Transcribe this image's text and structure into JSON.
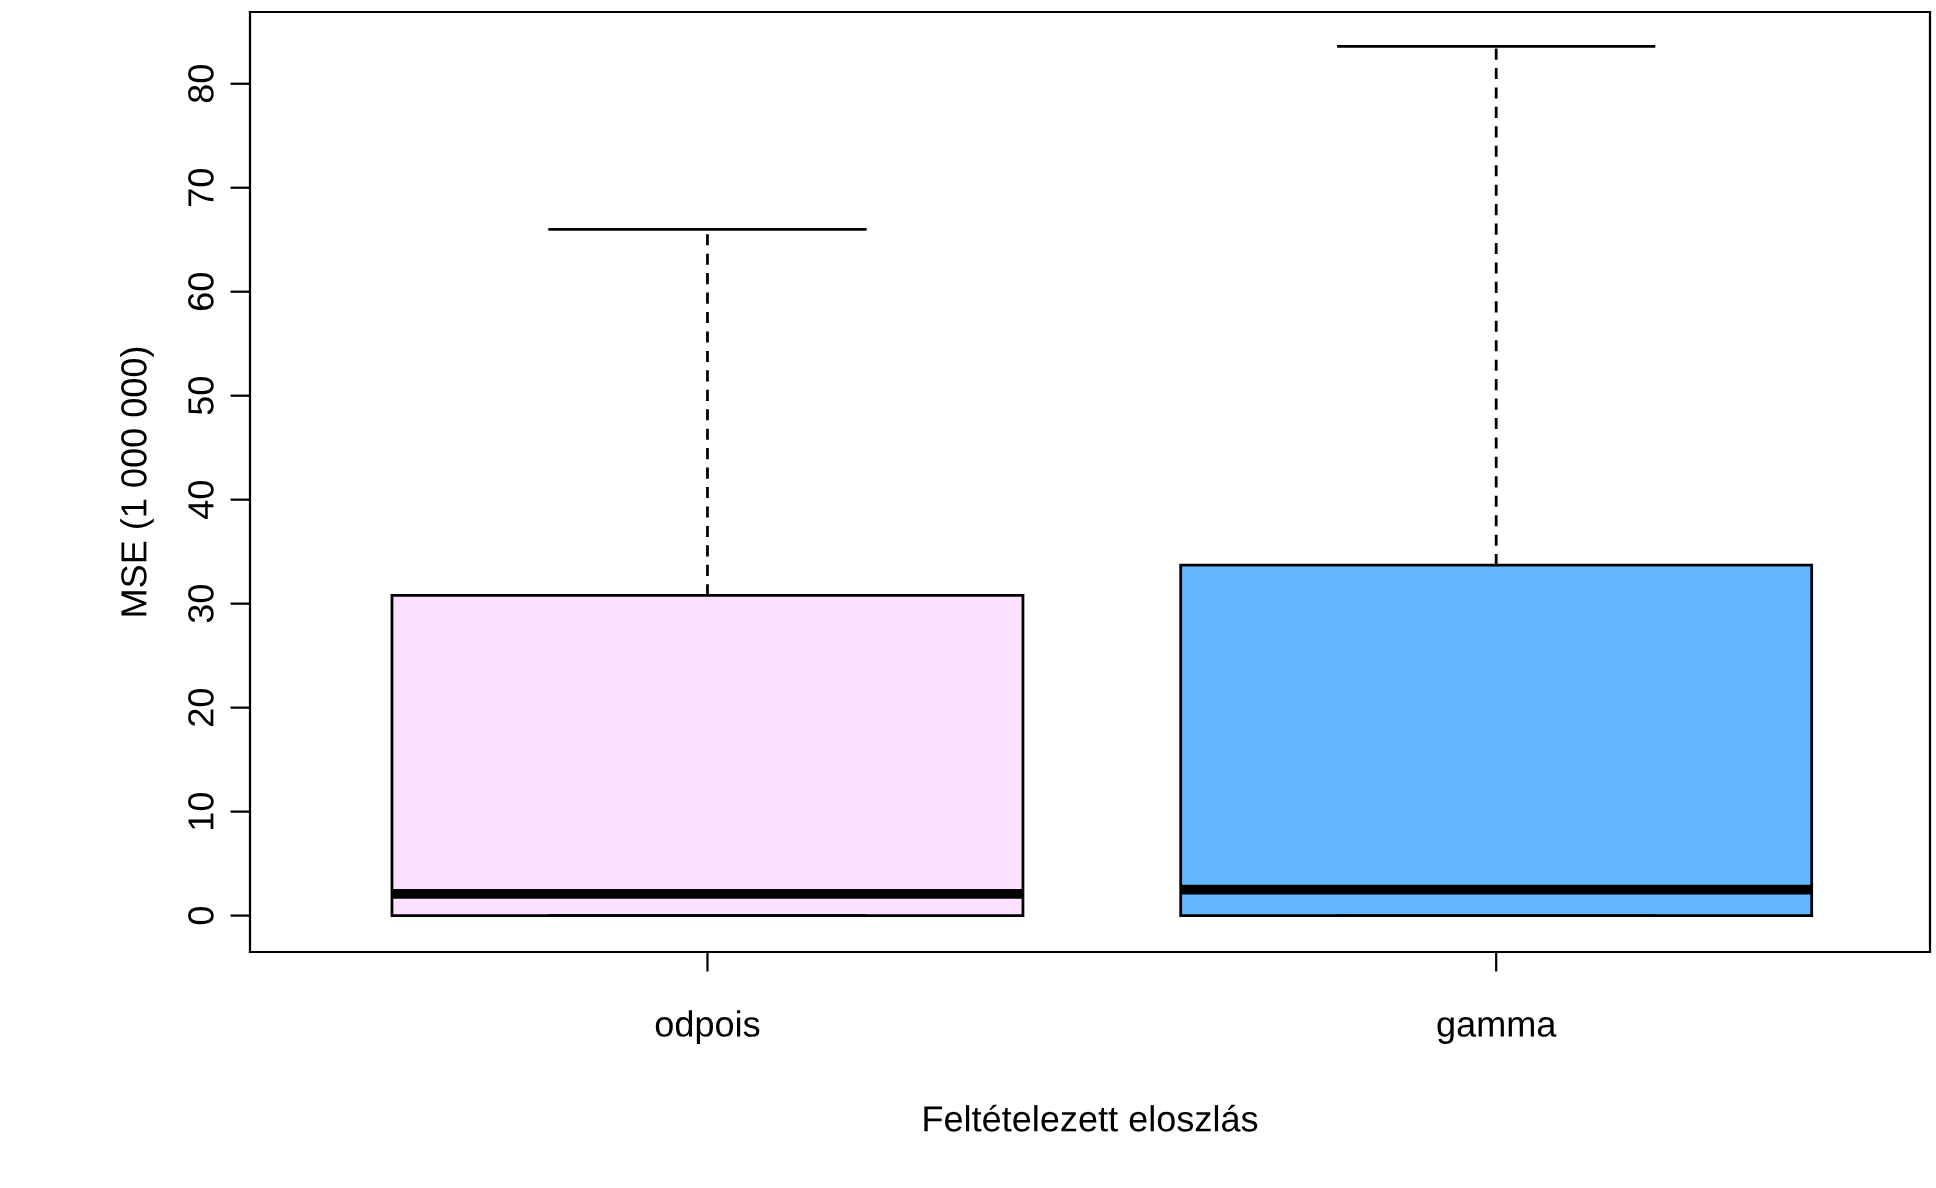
{
  "chart_data": {
    "type": "box",
    "xlabel": "Feltételezett eloszlás",
    "ylabel": "MSE (1 000 000)",
    "categories": [
      "odpois",
      "gamma"
    ],
    "colors": [
      "#fce0ff",
      "#63b8ff"
    ],
    "boxes": [
      {
        "low": 0,
        "q1": 0,
        "median": 2.1,
        "q3": 30.8,
        "high": 66
      },
      {
        "low": 0,
        "q1": 0,
        "median": 2.5,
        "q3": 33.7,
        "high": 83.6
      }
    ],
    "ylim": [
      -3.5,
      86.9
    ],
    "yticks": [
      0,
      10,
      20,
      30,
      40,
      50,
      60,
      70,
      80
    ],
    "grid": false,
    "legend": false
  }
}
